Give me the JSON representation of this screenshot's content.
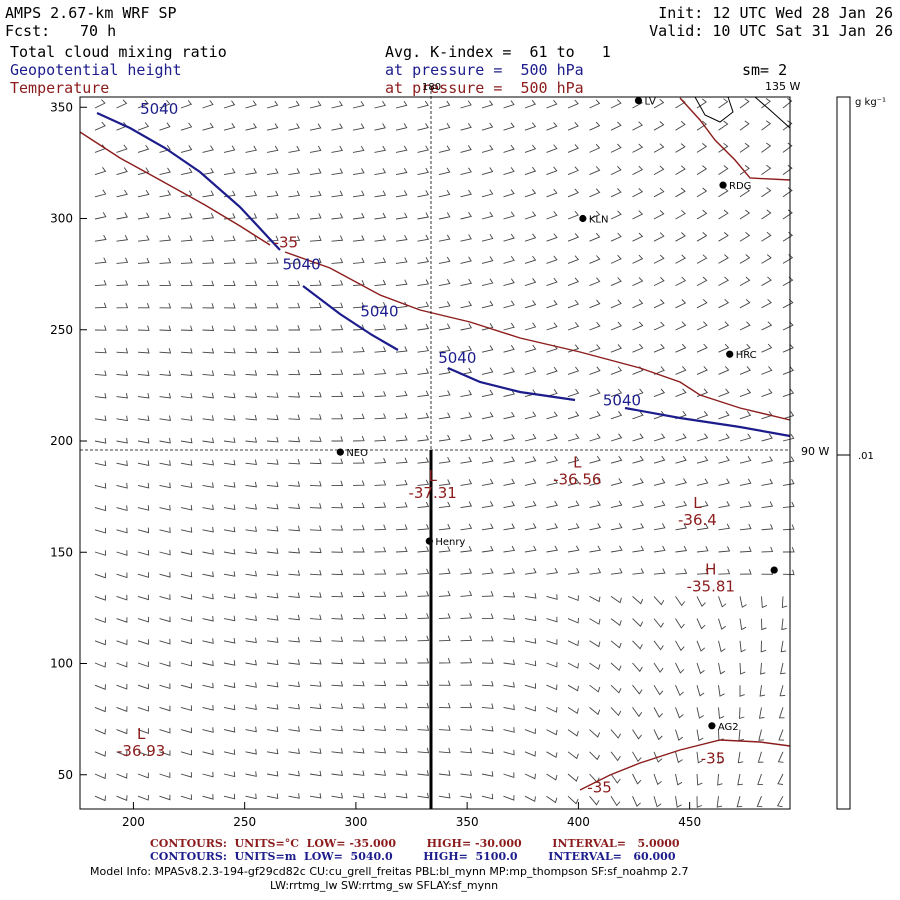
{
  "header": {
    "model": "AMPS 2.67-km WRF SP",
    "fcst_label": "Fcst:",
    "fcst_value": "70 h",
    "init": "Init: 12 UTC Wed 28 Jan 26",
    "valid": "Valid: 10 UTC Sat 31 Jan 26",
    "field1": "Total cloud mixing ratio",
    "field2": "Geopotential height",
    "field3": "Temperature",
    "avg": "Avg. K-index =  61 to   1",
    "pressure": "at pressure =  500 hPa",
    "smoothing": "sm= 2"
  },
  "map": {
    "lon_180": "180",
    "lon_135w": "135 W",
    "lon_90w": "90 W",
    "colorbar_units": "g kg⁻¹",
    "colorbar_tick": ".01",
    "x_ticks": [
      "200",
      "250",
      "300",
      "350",
      "400",
      "450"
    ],
    "y_ticks": [
      "350",
      "300",
      "250",
      "200",
      "150",
      "100",
      "50"
    ],
    "stations": [
      {
        "name": "LV",
        "x": 427,
        "y": 353
      },
      {
        "name": "RDG",
        "x": 465,
        "y": 315
      },
      {
        "name": "KLN",
        "x": 402,
        "y": 300
      },
      {
        "name": "HRC",
        "x": 468,
        "y": 239
      },
      {
        "name": "NEO",
        "x": 293,
        "y": 195
      },
      {
        "name": "Henry",
        "x": 333,
        "y": 155
      },
      {
        "name": "",
        "x": 488,
        "y": 142
      },
      {
        "name": "AG2",
        "x": 460,
        "y": 72
      }
    ],
    "height_labels": [
      {
        "text": "5040",
        "x": 203,
        "y": 347
      },
      {
        "text": "5040",
        "x": 267,
        "y": 277
      },
      {
        "text": "5040",
        "x": 302,
        "y": 256
      },
      {
        "text": "5040",
        "x": 337,
        "y": 235
      },
      {
        "text": "5040",
        "x": 411,
        "y": 216
      }
    ],
    "temp_labels": [
      {
        "text": "-35",
        "x": 263,
        "y": 287
      },
      {
        "text": "-35",
        "x": 455,
        "y": 55
      },
      {
        "text": "-35",
        "x": 404,
        "y": 42
      }
    ],
    "extrema": [
      {
        "kind": "L",
        "value": "-37.31",
        "x": 330,
        "y": 182
      },
      {
        "kind": "L",
        "value": "-36.56",
        "x": 395,
        "y": 188
      },
      {
        "kind": "L",
        "value": "-36.4",
        "x": 449,
        "y": 170
      },
      {
        "kind": "H",
        "value": "-35.81",
        "x": 455,
        "y": 140
      },
      {
        "kind": "L",
        "value": "-36.93",
        "x": 199,
        "y": 66
      }
    ]
  },
  "footer": {
    "red_line": "CONTOURS:  UNITS=°C  LOW= -35.000        HIGH= -30.000        INTERVAL=   5.0000",
    "blue_line": "CONTOURS:  UNITS=m  LOW=  5040.0        HIGH=  5100.0        INTERVAL=   60.000",
    "model_info": "Model Info: MPASv8.2.3-194-gf29cd82c CU:cu_grell_freitas PBL:bl_mynn MP:mp_thompson SF:sf_noahmp 2.7",
    "model_info2": "LW:rrtmg_lw SW:rrtmg_sw SFLAY:sf_mynn"
  },
  "colors": {
    "height": "#1c1c8c",
    "temp": "#8c1c1c"
  }
}
